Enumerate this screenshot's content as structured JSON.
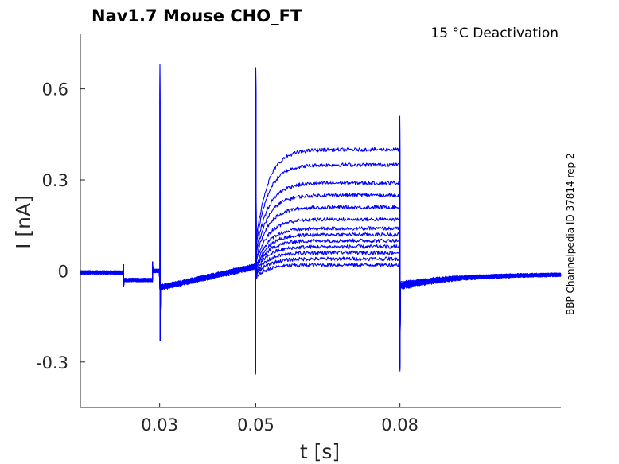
{
  "chart_data": {
    "type": "line",
    "title": "Nav1.7  Mouse  CHO_FT",
    "annotation": "15 °C  Deactivation",
    "side_label": "BBP Channelpedia ID 37814 rep 2",
    "xlabel": "t [s]",
    "ylabel": "I [nA]",
    "xlim": [
      0.0135,
      0.1135
    ],
    "ylim": [
      -0.45,
      0.78
    ],
    "xticks": [
      0.03,
      0.05,
      0.08
    ],
    "xtick_labels": [
      "0.03",
      "0.05",
      "0.08"
    ],
    "yticks": [
      0.6,
      0.3,
      0,
      -0.3
    ],
    "ytick_labels": [
      "0.6",
      "0.3",
      "0",
      "-0.3"
    ],
    "grid": false,
    "legend": "none",
    "line_color": "#0000ff",
    "num_sweeps": 13,
    "protocol": {
      "step1_start": 0.0225,
      "step1_end": 0.0325,
      "prepulse_start": 0.03,
      "prepulse_end": 0.05,
      "test_start": 0.05,
      "test_end": 0.08
    },
    "series": [
      {
        "x": [
          0.0135,
          0.0225,
          0.0226,
          0.0325,
          0.0326,
          0.03,
          0.0301,
          0.0304,
          0.049,
          0.05,
          0.0502,
          0.0505,
          0.079,
          0.08,
          0.0802,
          0.082,
          0.1135
        ],
        "values": [
          -0.005,
          -0.005,
          -0.03,
          -0.03,
          0.0,
          0.0,
          0.68,
          -0.06,
          0.01,
          -0.34,
          0.67,
          0.4,
          0.41,
          0.51,
          -0.33,
          -0.04,
          -0.01
        ]
      }
    ],
    "sweep_plateau_levels": [
      0.4,
      0.35,
      0.29,
      0.25,
      0.21,
      0.17,
      0.14,
      0.12,
      0.1,
      0.08,
      0.06,
      0.04,
      0.02
    ]
  }
}
